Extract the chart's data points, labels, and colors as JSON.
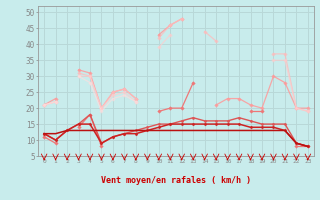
{
  "xlabel": "Vent moyen/en rafales ( km/h )",
  "background_color": "#c8ecec",
  "grid_color": "#b8d8d8",
  "x_ticks": [
    0,
    1,
    2,
    3,
    4,
    5,
    6,
    7,
    8,
    9,
    10,
    11,
    12,
    13,
    14,
    15,
    16,
    17,
    18,
    19,
    20,
    21,
    22,
    23
  ],
  "ylim": [
    5,
    52
  ],
  "yticks": [
    5,
    10,
    15,
    20,
    25,
    30,
    35,
    40,
    45,
    50
  ],
  "series": [
    {
      "color": "#ff9999",
      "alpha": 0.85,
      "lw": 0.9,
      "marker": "D",
      "ms": 1.8,
      "y": [
        21,
        23,
        null,
        32,
        31,
        20,
        25,
        26,
        23,
        null,
        43,
        46,
        48,
        null,
        null,
        21,
        23,
        23,
        21,
        20,
        30,
        28,
        20,
        20
      ]
    },
    {
      "color": "#ffbbbb",
      "alpha": 0.75,
      "lw": 0.9,
      "marker": "D",
      "ms": 1.8,
      "y": [
        21,
        22,
        null,
        31,
        30,
        20,
        25,
        26,
        23,
        null,
        42,
        46,
        48,
        null,
        44,
        41,
        null,
        null,
        null,
        null,
        37,
        37,
        20,
        19
      ]
    },
    {
      "color": "#ffcccc",
      "alpha": 0.7,
      "lw": 0.9,
      "marker": "D",
      "ms": 1.8,
      "y": [
        21,
        22,
        null,
        30,
        30,
        20,
        24,
        25,
        22,
        null,
        39,
        43,
        null,
        null,
        null,
        null,
        null,
        null,
        null,
        null,
        35,
        35,
        20,
        19
      ]
    },
    {
      "color": "#ffdddd",
      "alpha": 0.65,
      "lw": 0.9,
      "marker": "D",
      "ms": 1.8,
      "y": [
        21,
        22,
        null,
        30,
        28,
        19,
        23,
        24,
        22,
        null,
        null,
        null,
        null,
        null,
        null,
        null,
        null,
        null,
        null,
        null,
        null,
        null,
        null,
        null
      ]
    },
    {
      "color": "#ee7777",
      "alpha": 1.0,
      "lw": 0.9,
      "marker": "D",
      "ms": 1.8,
      "y": [
        11,
        9,
        null,
        14,
        18,
        8,
        null,
        null,
        null,
        null,
        19,
        20,
        20,
        28,
        null,
        null,
        null,
        null,
        19,
        19,
        null,
        null,
        8,
        8
      ]
    },
    {
      "color": "#dd5555",
      "alpha": 1.0,
      "lw": 1.0,
      "marker": "D",
      "ms": 1.5,
      "y": [
        12,
        10,
        13,
        15,
        18,
        9,
        11,
        12,
        13,
        14,
        15,
        15,
        16,
        17,
        16,
        16,
        16,
        17,
        16,
        15,
        15,
        15,
        9,
        8
      ]
    },
    {
      "color": "#cc2222",
      "alpha": 1.0,
      "lw": 1.1,
      "marker": "D",
      "ms": 1.5,
      "y": [
        12,
        10,
        13,
        15,
        15,
        9,
        11,
        12,
        12,
        13,
        14,
        15,
        15,
        15,
        15,
        15,
        15,
        15,
        14,
        14,
        14,
        13,
        9,
        8
      ]
    },
    {
      "color": "#bb1111",
      "alpha": 1.0,
      "lw": 1.1,
      "marker": null,
      "ms": 0,
      "y": [
        12,
        12,
        13,
        13,
        13,
        13,
        13,
        13,
        13,
        13,
        13,
        13,
        13,
        13,
        13,
        13,
        13,
        13,
        13,
        13,
        13,
        13,
        9,
        8
      ]
    }
  ],
  "arrow_chars": [
    "↓",
    "↓",
    "ℓ",
    "↓",
    "↓",
    "↓",
    "ℓ",
    "ℓ",
    "ℓ",
    "ℓ",
    "ℓ",
    "↓",
    "ℓ",
    "↓",
    "ℓ",
    "ℓ",
    "ℓ",
    "ℓ",
    "ℓ",
    "ℓ",
    "ℓ",
    "ℓ",
    "ℓ",
    "↓"
  ],
  "arrow_color": "#cc0000"
}
